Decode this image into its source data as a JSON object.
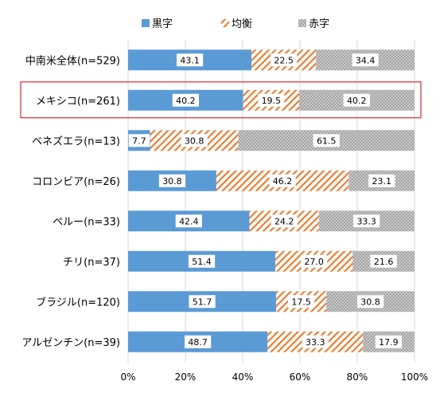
{
  "chart_data": {
    "type": "bar",
    "orientation": "horizontal",
    "stacked": true,
    "categories": [
      "中南米全体(n=529)",
      "メキシコ(n=261)",
      "ベネズエラ(n=13)",
      "コロンビア(n=26)",
      "ペルー(n=33)",
      "チリ(n=37)",
      "ブラジル(n=120)",
      "アルゼンチン(n=39)"
    ],
    "series": [
      {
        "name": "黒字",
        "values": [
          43.1,
          40.2,
          7.7,
          30.8,
          42.4,
          51.4,
          51.7,
          48.7
        ],
        "color": "#5b9bd5",
        "pattern": "solid"
      },
      {
        "name": "均衡",
        "values": [
          22.5,
          19.5,
          30.8,
          46.2,
          24.2,
          27.0,
          17.5,
          33.3
        ],
        "color": "#ed7d31",
        "pattern": "diagonal-stripes"
      },
      {
        "name": "赤字",
        "values": [
          34.4,
          40.2,
          61.5,
          23.1,
          33.3,
          21.6,
          30.8,
          17.9
        ],
        "color": "#a5a5a5",
        "pattern": "dots"
      }
    ],
    "value_labels": [
      [
        "43.1",
        "22.5",
        "34.4"
      ],
      [
        "40.2",
        "19.5",
        "40.2"
      ],
      [
        "7.7",
        "30.8",
        "61.5"
      ],
      [
        "30.8",
        "46.2",
        "23.1"
      ],
      [
        "42.4",
        "24.2",
        "33.3"
      ],
      [
        "51.4",
        "27.0",
        "21.6"
      ],
      [
        "51.7",
        "17.5",
        "30.8"
      ],
      [
        "48.7",
        "33.3",
        "17.9"
      ]
    ],
    "xlim": [
      0,
      100
    ],
    "xticks": [
      "0%",
      "20%",
      "40%",
      "60%",
      "80%",
      "100%"
    ],
    "grid": true,
    "legend_position": "top",
    "highlighted_category": "メキシコ(n=261)",
    "highlight_color": "#e0262a"
  }
}
